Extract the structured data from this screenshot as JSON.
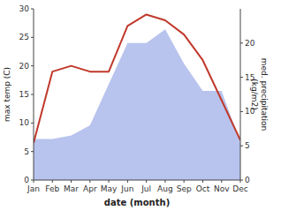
{
  "chart_data": {
    "type": "line",
    "categories": [
      "Jan",
      "Feb",
      "Mar",
      "Apr",
      "May",
      "Jun",
      "Jul",
      "Aug",
      "Sep",
      "Oct",
      "Nov",
      "Dec"
    ],
    "xlabel": "date (month)",
    "ylabel": "max temp (C)",
    "y2label": "med. precipitation\n(kg/m2)",
    "ylim": [
      0,
      30
    ],
    "yticks": [
      0,
      5,
      10,
      15,
      20,
      25,
      30
    ],
    "y2lim": [
      0,
      25
    ],
    "y2ticks": [
      0,
      5,
      10,
      15,
      20
    ],
    "grid": false,
    "series": [
      {
        "type": "area",
        "axis": "y2",
        "color": "#b8c4ee",
        "values": [
          6.0,
          6.0,
          6.5,
          8.0,
          14.0,
          20.0,
          20.0,
          22.0,
          17.0,
          13.0,
          13.0,
          5.5
        ]
      },
      {
        "type": "line",
        "color": "#c0392b",
        "values": [
          6.5,
          19.0,
          20.0,
          19.0,
          19.0,
          27.0,
          29.0,
          28.0,
          25.5,
          21.0,
          14.0,
          7.0
        ]
      }
    ]
  }
}
